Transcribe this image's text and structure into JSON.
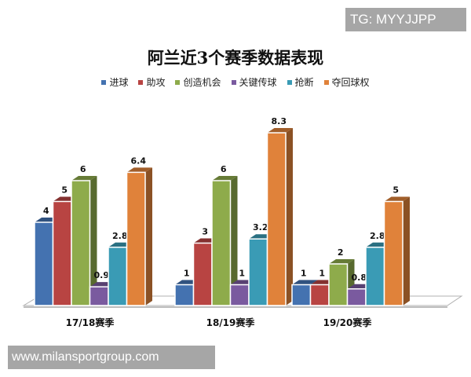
{
  "watermarks": {
    "top_right": "TG: MYYJJPP",
    "bottom_left": "www.milansportgroup.com"
  },
  "chart_data": {
    "type": "bar",
    "style": "3d-clustered-column",
    "title": "阿兰近3个赛季数据表现",
    "xlabel": "",
    "ylabel": "",
    "categories": [
      "17/18赛季",
      "18/19赛季",
      "19/20赛季"
    ],
    "series": [
      {
        "name": "进球",
        "color": "#4472b0",
        "values": [
          4,
          1,
          1
        ]
      },
      {
        "name": "助攻",
        "color": "#b84442",
        "values": [
          5,
          3,
          1
        ]
      },
      {
        "name": "创造机会",
        "color": "#8eab4b",
        "values": [
          6,
          6,
          2
        ]
      },
      {
        "name": "关键传球",
        "color": "#7a5a9f",
        "values": [
          0.9,
          1,
          0.8
        ]
      },
      {
        "name": "抢断",
        "color": "#3a9bb5",
        "values": [
          2.8,
          3.2,
          2.8
        ]
      },
      {
        "name": "夺回球权",
        "color": "#e0823a",
        "values": [
          6.4,
          8.3,
          5
        ]
      }
    ],
    "data_labels": true,
    "legend_position": "top",
    "grid": false,
    "ylim": [
      0,
      9
    ]
  }
}
